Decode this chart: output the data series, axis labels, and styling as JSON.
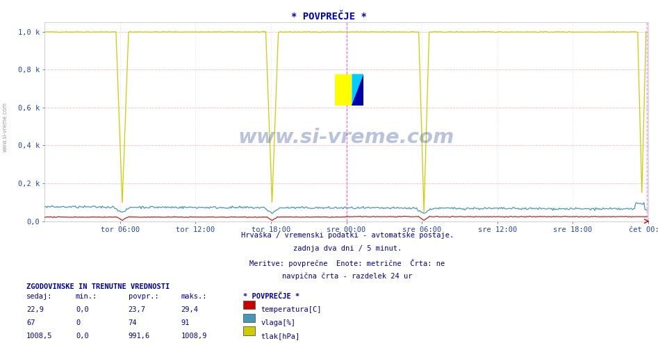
{
  "title": "* POVPREČJE *",
  "title_color": "#0000cc",
  "bg_color": "#ffffff",
  "plot_bg_color": "#ffffff",
  "grid_color_h": "#ffaaaa",
  "grid_color_v": "#ddcccc",
  "ylim": [
    0.0,
    1.05
  ],
  "yticks": [
    0.0,
    0.2,
    0.4,
    0.6,
    0.8,
    1.0
  ],
  "ytick_labels": [
    "0,0",
    "0,2 k",
    "0,4 k",
    "0,6 k",
    "0,8 k",
    "1,0 k"
  ],
  "xlabel_color": "#2244aa",
  "xtick_labels": [
    "tor 06:00",
    "tor 12:00",
    "tor 18:00",
    "sre 00:00",
    "sre 06:00",
    "sre 12:00",
    "sre 18:00",
    "čet 00:00"
  ],
  "n_points": 576,
  "temp_color": "#cc0000",
  "humidity_color": "#4499bb",
  "pressure_color": "#cccc00",
  "watermark_text": "www.si-vreme.com",
  "watermark_color": "#1a3a8a",
  "footer_lines": [
    "Hrvaška / vremenski podatki - avtomatske postaje.",
    "zadnja dva dni / 5 minut.",
    "Meritve: povprečne  Enote: metrične  Črta: ne",
    "navpična črta - razdelek 24 ur"
  ],
  "footer_color": "#0000aa",
  "table_header": "ZGODOVINSKE IN TRENUTNE VREDNOSTI",
  "table_cols": [
    "sedaj:",
    "min.:",
    "povpr.:",
    "maks.:"
  ],
  "table_rows": [
    [
      "22,9",
      "0,0",
      "23,7",
      "29,4"
    ],
    [
      "67",
      "0",
      "74",
      "91"
    ],
    [
      "1008,5",
      "0,0",
      "991,6",
      "1008,9"
    ]
  ],
  "legend_title": "* POVPREČJE *",
  "legend_items": [
    {
      "label": "temperatura[C]",
      "color": "#cc0000"
    },
    {
      "label": "vlaga[%]",
      "color": "#4499bb"
    },
    {
      "label": "tlak[hPa]",
      "color": "#cccc00"
    }
  ],
  "midnight_line_color": "#ff44ff",
  "xtick_hours": [
    6,
    12,
    18,
    24,
    30,
    36,
    42,
    48
  ],
  "total_hours": 48,
  "points_per_hour": 12
}
